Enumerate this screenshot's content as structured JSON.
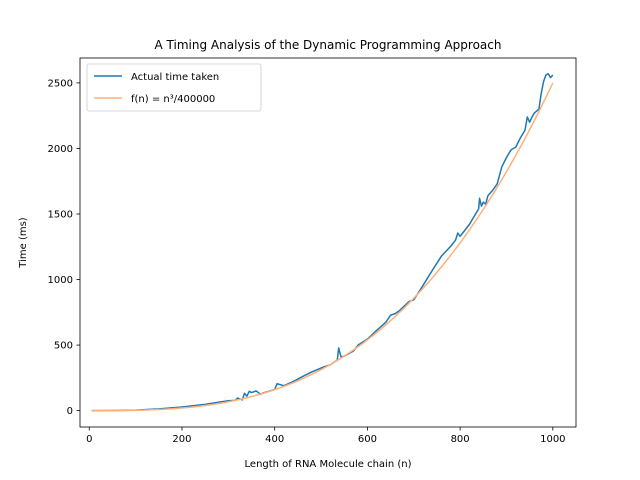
{
  "chart_data": {
    "type": "line",
    "title": "A Timing Analysis of the Dynamic Programming Approach",
    "xlabel": "Length of RNA Molecule chain (n)",
    "ylabel": "Time (ms)",
    "xlim": [
      -20,
      1050
    ],
    "ylim": [
      -125,
      2690
    ],
    "xticks": [
      0,
      200,
      400,
      600,
      800,
      1000
    ],
    "yticks": [
      0,
      500,
      1000,
      1500,
      2000,
      2500
    ],
    "grid": false,
    "legend_position": "top-left",
    "series": [
      {
        "name": "Actual time taken",
        "color": "#1f77b4",
        "x": [
          5,
          50,
          100,
          150,
          200,
          250,
          280,
          300,
          315,
          320,
          330,
          335,
          340,
          345,
          350,
          360,
          370,
          375,
          390,
          400,
          405,
          420,
          440,
          460,
          480,
          500,
          520,
          535,
          538,
          543,
          550,
          570,
          580,
          600,
          620,
          640,
          650,
          660,
          670,
          680,
          690,
          700,
          720,
          740,
          760,
          780,
          790,
          795,
          800,
          810,
          820,
          830,
          840,
          842,
          846,
          850,
          855,
          860,
          870,
          880,
          890,
          900,
          910,
          920,
          930,
          940,
          945,
          950,
          955,
          960,
          970,
          975,
          980,
          985,
          990,
          995,
          1000
        ],
        "y": [
          0,
          1,
          4,
          13,
          28,
          48,
          65,
          75,
          78,
          96,
          82,
          132,
          110,
          147,
          138,
          150,
          124,
          135,
          150,
          160,
          205,
          190,
          222,
          260,
          295,
          325,
          350,
          385,
          478,
          410,
          415,
          455,
          500,
          545,
          612,
          675,
          728,
          740,
          765,
          800,
          832,
          845,
          955,
          1070,
          1180,
          1255,
          1300,
          1355,
          1330,
          1375,
          1420,
          1480,
          1540,
          1620,
          1560,
          1590,
          1575,
          1640,
          1680,
          1730,
          1860,
          1930,
          1990,
          2010,
          2080,
          2140,
          2240,
          2200,
          2240,
          2270,
          2300,
          2420,
          2510,
          2560,
          2570,
          2540,
          2560
        ]
      },
      {
        "name": "f(n) = n³/400000",
        "color": "#ffb07a",
        "formula": "n^3/400000",
        "domain": [
          5,
          1000
        ]
      }
    ]
  }
}
